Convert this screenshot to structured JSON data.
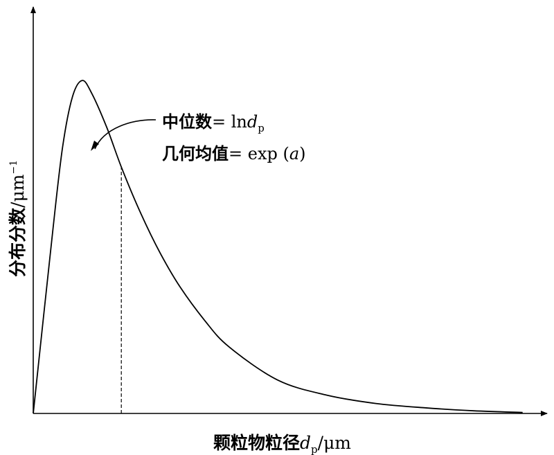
{
  "chart_data": {
    "type": "line",
    "title": "",
    "xlabel": {
      "text": "颗粒物粒径",
      "var": "d",
      "sub": "p",
      "unit": "/μm"
    },
    "ylabel": {
      "text": "分布分数",
      "unit": "/μm",
      "sup": "−1"
    },
    "annotations": {
      "median": {
        "text": "中位数",
        "expr": "= ln",
        "var": "d",
        "sub": "p"
      },
      "geomean": {
        "text": "几何均值",
        "expr": "= exp (",
        "var": "a",
        "close": ")"
      }
    },
    "series": [
      {
        "x": [
          0,
          0.04,
          0.06,
          0.08,
          0.1,
          0.12,
          0.15,
          0.18,
          0.22,
          0.26,
          0.3,
          0.35,
          0.4,
          0.5,
          0.6,
          0.7,
          0.8,
          0.9,
          1.0
        ],
        "y": [
          0,
          0.55,
          0.8,
          0.95,
          1.0,
          0.96,
          0.86,
          0.74,
          0.6,
          0.48,
          0.38,
          0.28,
          0.2,
          0.1,
          0.055,
          0.03,
          0.017,
          0.008,
          0.003
        ]
      }
    ],
    "median_x": 0.18,
    "xlim": [
      0,
      1.05
    ],
    "ylim": [
      0,
      1.2
    ],
    "grid": false,
    "colors": {
      "line": "#000000",
      "axis": "#000000"
    }
  }
}
